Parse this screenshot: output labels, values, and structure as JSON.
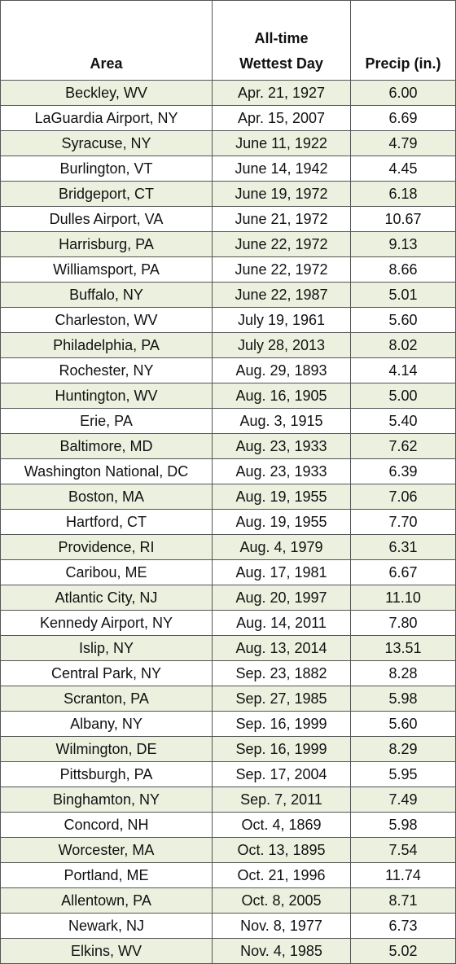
{
  "table": {
    "headers": [
      "Area",
      "All-time Wettest Day",
      "Precip (in.)"
    ],
    "rows": [
      [
        "Beckley, WV",
        "Apr. 21, 1927",
        "6.00"
      ],
      [
        "LaGuardia Airport, NY",
        "Apr. 15, 2007",
        "6.69"
      ],
      [
        "Syracuse, NY",
        "June 11, 1922",
        "4.79"
      ],
      [
        "Burlington, VT",
        "June 14, 1942",
        "4.45"
      ],
      [
        "Bridgeport, CT",
        "June 19, 1972",
        "6.18"
      ],
      [
        "Dulles Airport, VA",
        "June 21, 1972",
        "10.67"
      ],
      [
        "Harrisburg, PA",
        "June 22, 1972",
        "9.13"
      ],
      [
        "Williamsport, PA",
        "June 22, 1972",
        "8.66"
      ],
      [
        "Buffalo, NY",
        "June 22, 1987",
        "5.01"
      ],
      [
        "Charleston, WV",
        "July 19, 1961",
        "5.60"
      ],
      [
        "Philadelphia, PA",
        "July 28, 2013",
        "8.02"
      ],
      [
        "Rochester, NY",
        "Aug. 29, 1893",
        "4.14"
      ],
      [
        "Huntington, WV",
        "Aug. 16, 1905",
        "5.00"
      ],
      [
        "Erie, PA",
        "Aug. 3, 1915",
        "5.40"
      ],
      [
        "Baltimore, MD",
        "Aug. 23, 1933",
        "7.62"
      ],
      [
        "Washington National, DC",
        "Aug. 23, 1933",
        "6.39"
      ],
      [
        "Boston, MA",
        "Aug. 19, 1955",
        "7.06"
      ],
      [
        "Hartford, CT",
        "Aug. 19, 1955",
        "7.70"
      ],
      [
        "Providence, RI",
        "Aug. 4, 1979",
        "6.31"
      ],
      [
        "Caribou, ME",
        "Aug. 17, 1981",
        "6.67"
      ],
      [
        "Atlantic City, NJ",
        "Aug. 20, 1997",
        "11.10"
      ],
      [
        "Kennedy Airport, NY",
        "Aug. 14, 2011",
        "7.80"
      ],
      [
        "Islip, NY",
        "Aug. 13, 2014",
        "13.51"
      ],
      [
        "Central Park, NY",
        "Sep. 23, 1882",
        "8.28"
      ],
      [
        "Scranton, PA",
        "Sep. 27, 1985",
        "5.98"
      ],
      [
        "Albany, NY",
        "Sep. 16, 1999",
        "5.60"
      ],
      [
        "Wilmington, DE",
        "Sep. 16, 1999",
        "8.29"
      ],
      [
        "Pittsburgh, PA",
        "Sep. 17, 2004",
        "5.95"
      ],
      [
        "Binghamton, NY",
        "Sep. 7, 2011",
        "7.49"
      ],
      [
        "Concord, NH",
        "Oct. 4, 1869",
        "5.98"
      ],
      [
        "Worcester, MA",
        "Oct. 13, 1895",
        "7.54"
      ],
      [
        "Portland, ME",
        "Oct. 21, 1996",
        "11.74"
      ],
      [
        "Allentown, PA",
        "Oct. 8, 2005",
        "8.71"
      ],
      [
        "Newark, NJ",
        "Nov. 8, 1977",
        "6.73"
      ],
      [
        "Elkins, WV",
        "Nov. 4, 1985",
        "5.02"
      ]
    ]
  }
}
